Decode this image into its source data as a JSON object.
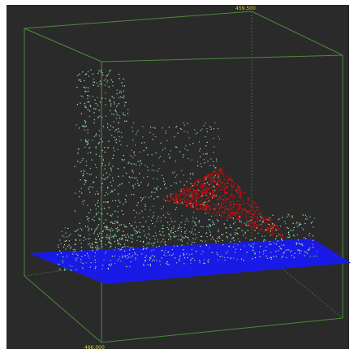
{
  "labels": {
    "top": "459.500",
    "bottom": "466.000"
  }
}
